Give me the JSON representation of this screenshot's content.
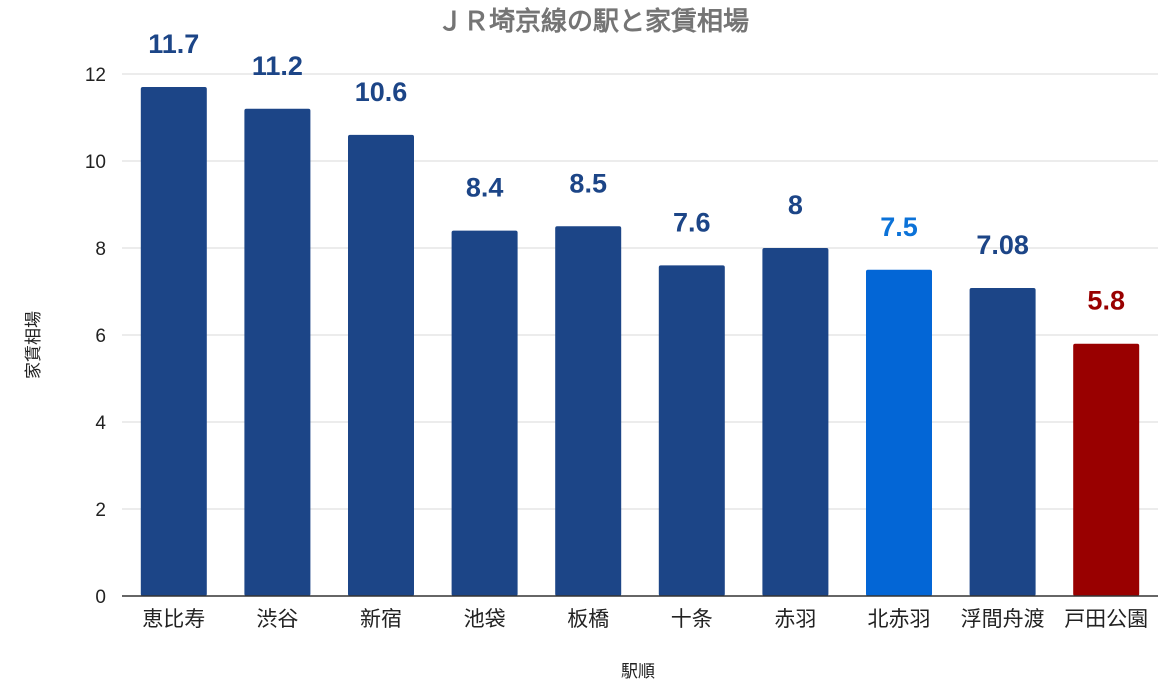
{
  "chart_data": {
    "type": "bar",
    "title": "ＪＲ埼京線の駅と家賃相場",
    "xlabel": "駅順",
    "ylabel": "家賃相場",
    "ylim": [
      0,
      12
    ],
    "yticks": [
      0,
      2,
      4,
      6,
      8,
      10,
      12
    ],
    "grid": true,
    "categories": [
      "恵比寿",
      "渋谷",
      "新宿",
      "池袋",
      "板橋",
      "十条",
      "赤羽",
      "北赤羽",
      "浮間舟渡",
      "戸田公園"
    ],
    "values": [
      11.7,
      11.2,
      10.6,
      8.4,
      8.5,
      7.6,
      8,
      7.5,
      7.08,
      5.8
    ],
    "value_labels": [
      "11.7",
      "11.2",
      "10.6",
      "8.4",
      "8.5",
      "7.6",
      "8",
      "7.5",
      "7.08",
      "5.8"
    ],
    "bar_colors": [
      "#1c4587",
      "#1c4587",
      "#1c4587",
      "#1c4587",
      "#1c4587",
      "#1c4587",
      "#1c4587",
      "#0366d6",
      "#1c4587",
      "#990000"
    ],
    "label_colors": [
      "#1c4587",
      "#1c4587",
      "#1c4587",
      "#1c4587",
      "#1c4587",
      "#1c4587",
      "#1c4587",
      "#0b72d8",
      "#1c4587",
      "#990000"
    ]
  }
}
